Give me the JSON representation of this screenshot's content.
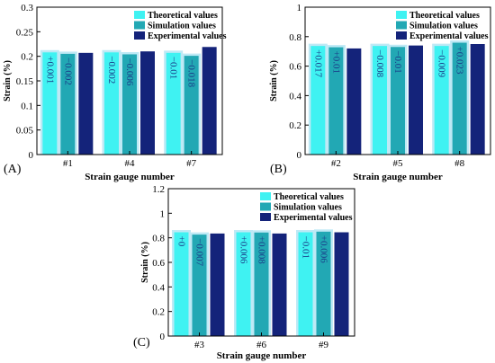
{
  "colors": {
    "theoretical": "#3FF2F2",
    "theoretical_halo": "#BEE9F5",
    "simulation": "#22A8B4",
    "experimental": "#14237A",
    "axis": "#000000",
    "label_text": "#1A3F8A"
  },
  "chart_data": [
    {
      "type": "bar",
      "panel_label": "(A)",
      "xlabel": "Strain gauge number",
      "ylabel": "Strain (%)",
      "ylim": [
        0,
        0.3
      ],
      "yticks": [
        "0",
        "0.05",
        "0.1",
        "0.15",
        "0.2",
        "0.25",
        "0.3"
      ],
      "categories": [
        "#1",
        "#4",
        "#7"
      ],
      "legend": {
        "position": "top-right",
        "entries": [
          "Theoretical values",
          "Simulation values",
          "Experimental values"
        ]
      },
      "series": [
        {
          "name": "Theoretical values",
          "values": [
            0.208,
            0.208,
            0.207
          ]
        },
        {
          "name": "Simulation values",
          "values": [
            0.205,
            0.204,
            0.201
          ]
        },
        {
          "name": "Experimental values",
          "values": [
            0.207,
            0.21,
            0.219
          ]
        }
      ],
      "bar_labels": [
        {
          "series": 0,
          "category": 0,
          "text": "+0.001"
        },
        {
          "series": 1,
          "category": 0,
          "text": "−0.002"
        },
        {
          "series": 0,
          "category": 1,
          "text": "−0.002"
        },
        {
          "series": 1,
          "category": 1,
          "text": "−0.006"
        },
        {
          "series": 0,
          "category": 2,
          "text": "−0.01"
        },
        {
          "series": 1,
          "category": 2,
          "text": "−0.018"
        }
      ]
    },
    {
      "type": "bar",
      "panel_label": "(B)",
      "xlabel": "Strain gauge number",
      "ylabel": "Strain (%)",
      "ylim": [
        0,
        1
      ],
      "yticks": [
        "0",
        "0.2",
        "0.4",
        "0.6",
        "0.8",
        "1"
      ],
      "categories": [
        "#2",
        "#5",
        "#8"
      ],
      "legend": {
        "position": "top-right",
        "entries": [
          "Theoretical values",
          "Simulation values",
          "Experimental values"
        ]
      },
      "series": [
        {
          "name": "Theoretical values",
          "values": [
            0.737,
            0.737,
            0.737
          ]
        },
        {
          "name": "Simulation values",
          "values": [
            0.728,
            0.73,
            0.759
          ]
        },
        {
          "name": "Experimental values",
          "values": [
            0.72,
            0.74,
            0.75
          ]
        }
      ],
      "bar_labels": [
        {
          "series": 0,
          "category": 0,
          "text": "+0.017"
        },
        {
          "series": 1,
          "category": 0,
          "text": "+0.01"
        },
        {
          "series": 0,
          "category": 1,
          "text": "−0.008"
        },
        {
          "series": 1,
          "category": 1,
          "text": "−0.01"
        },
        {
          "series": 0,
          "category": 2,
          "text": "−0.009"
        },
        {
          "series": 1,
          "category": 2,
          "text": "+0.023"
        }
      ]
    },
    {
      "type": "bar",
      "panel_label": "(C)",
      "xlabel": "Strain gauge number",
      "ylabel": "Strain (%)",
      "ylim": [
        0,
        1.2
      ],
      "yticks": [
        "0",
        "0.2",
        "0.4",
        "0.6",
        "0.8",
        "1",
        "1.2"
      ],
      "categories": [
        "#3",
        "#6",
        "#9"
      ],
      "legend": {
        "position": "top-right",
        "entries": [
          "Theoretical values",
          "Simulation values",
          "Experimental values"
        ]
      },
      "series": [
        {
          "name": "Theoretical values",
          "values": [
            0.845,
            0.845,
            0.845
          ]
        },
        {
          "name": "Simulation values",
          "values": [
            0.826,
            0.843,
            0.85
          ]
        },
        {
          "name": "Experimental values",
          "values": [
            0.835,
            0.835,
            0.845
          ]
        }
      ],
      "bar_labels": [
        {
          "series": 0,
          "category": 0,
          "text": "+0"
        },
        {
          "series": 1,
          "category": 0,
          "text": "−0.007"
        },
        {
          "series": 0,
          "category": 1,
          "text": "+0.006"
        },
        {
          "series": 1,
          "category": 1,
          "text": "+0.008"
        },
        {
          "series": 0,
          "category": 2,
          "text": "−0.01"
        },
        {
          "series": 1,
          "category": 2,
          "text": "+0.006"
        }
      ]
    }
  ]
}
